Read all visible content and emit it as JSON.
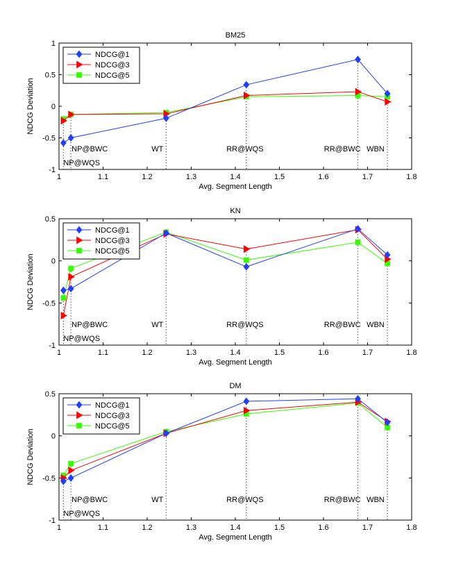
{
  "chart_data": [
    {
      "type": "line",
      "title": "BM25",
      "xlabel": "Avg. Segment Length",
      "ylabel": "NDCG Deviation",
      "xlim": [
        1,
        1.8
      ],
      "ylim": [
        -1,
        1
      ],
      "xticks": [
        "1",
        "1.1",
        "1.2",
        "1.3",
        "1.4",
        "1.5",
        "1.6",
        "1.7",
        "1.8"
      ],
      "yticks": [
        "-1",
        "-0.5",
        "0",
        "0.5",
        "1"
      ],
      "x": [
        1.01,
        1.027,
        1.243,
        1.425,
        1.678,
        1.745
      ],
      "series": [
        {
          "name": "NDCG@1",
          "values": [
            -0.58,
            -0.5,
            -0.19,
            0.34,
            0.74,
            0.2
          ]
        },
        {
          "name": "NDCG@3",
          "values": [
            -0.23,
            -0.13,
            -0.12,
            0.17,
            0.23,
            0.07
          ]
        },
        {
          "name": "NDCG@5",
          "values": [
            -0.2,
            -0.13,
            -0.1,
            0.15,
            0.17,
            0.15
          ]
        }
      ],
      "annotations": [
        {
          "label": "NP@WQS",
          "x": 1.01
        },
        {
          "label": "NP@BWC",
          "x": 1.027
        },
        {
          "label": "WT",
          "x": 1.243
        },
        {
          "label": "RR@WQS",
          "x": 1.425
        },
        {
          "label": "RR@BWC",
          "x": 1.678
        },
        {
          "label": "WBN",
          "x": 1.745
        }
      ],
      "legend": "top-left"
    },
    {
      "type": "line",
      "title": "KN",
      "xlabel": "Avg. Segment Length",
      "ylabel": "NDCG Deviation",
      "xlim": [
        1,
        1.8
      ],
      "ylim": [
        -1,
        0.5
      ],
      "xticks": [
        "1",
        "1.1",
        "1.2",
        "1.3",
        "1.4",
        "1.5",
        "1.6",
        "1.7",
        "1.8"
      ],
      "yticks": [
        "-1",
        "-0.5",
        "0",
        "0.5"
      ],
      "x": [
        1.01,
        1.027,
        1.243,
        1.425,
        1.678,
        1.745
      ],
      "series": [
        {
          "name": "NDCG@1",
          "values": [
            -0.35,
            -0.33,
            0.33,
            -0.07,
            0.38,
            0.07
          ]
        },
        {
          "name": "NDCG@3",
          "values": [
            -0.65,
            -0.19,
            0.32,
            0.14,
            0.37,
            0.02
          ]
        },
        {
          "name": "NDCG@5",
          "values": [
            -0.44,
            -0.09,
            0.34,
            0.01,
            0.22,
            -0.03
          ]
        }
      ],
      "annotations": [
        {
          "label": "NP@WQS",
          "x": 1.01
        },
        {
          "label": "NP@BWC",
          "x": 1.027
        },
        {
          "label": "WT",
          "x": 1.243
        },
        {
          "label": "RR@WQS",
          "x": 1.425
        },
        {
          "label": "RR@BWC",
          "x": 1.678
        },
        {
          "label": "WBN",
          "x": 1.745
        }
      ],
      "legend": "top-left"
    },
    {
      "type": "line",
      "title": "DM",
      "xlabel": "Avg. Segment Length",
      "ylabel": "NDCG Deviation",
      "xlim": [
        1,
        1.8
      ],
      "ylim": [
        -1,
        0.5
      ],
      "xticks": [
        "1",
        "1.1",
        "1.2",
        "1.3",
        "1.4",
        "1.5",
        "1.6",
        "1.7",
        "1.8"
      ],
      "yticks": [
        "-1",
        "-0.5",
        "0",
        "0.5"
      ],
      "x": [
        1.01,
        1.027,
        1.243,
        1.425,
        1.678,
        1.745
      ],
      "series": [
        {
          "name": "NDCG@1",
          "values": [
            -0.54,
            -0.5,
            0.03,
            0.41,
            0.44,
            0.16
          ]
        },
        {
          "name": "NDCG@3",
          "values": [
            -0.5,
            -0.41,
            0.03,
            0.3,
            0.4,
            0.17
          ]
        },
        {
          "name": "NDCG@5",
          "values": [
            -0.47,
            -0.33,
            0.05,
            0.26,
            0.39,
            0.1
          ]
        }
      ],
      "annotations": [
        {
          "label": "NP@WQS",
          "x": 1.01
        },
        {
          "label": "NP@BWC",
          "x": 1.027
        },
        {
          "label": "WT",
          "x": 1.243
        },
        {
          "label": "RR@WQS",
          "x": 1.425
        },
        {
          "label": "RR@BWC",
          "x": 1.678
        },
        {
          "label": "WBN",
          "x": 1.745
        }
      ],
      "legend": "top-left"
    }
  ],
  "colors": {
    "series": [
      "#1f3fff",
      "#ff0000",
      "#33ff00"
    ],
    "axis": "#000000",
    "guide": "#000000"
  },
  "markers": [
    "diamond-icon",
    "triangle-right-icon",
    "square-icon"
  ]
}
